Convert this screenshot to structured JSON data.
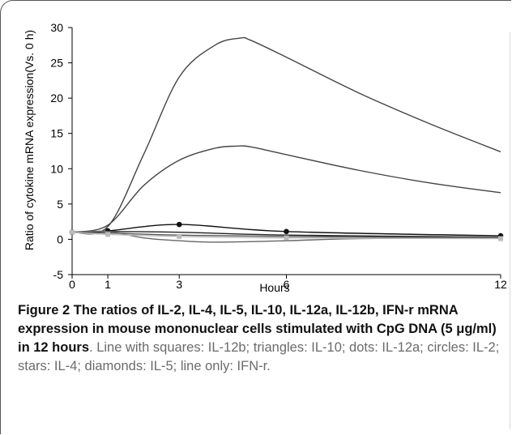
{
  "chart_data": {
    "type": "line",
    "xlabel": "Hours",
    "ylabel": "Ratio of cytokine mRNA expression(Vs. 0 h)",
    "xlim": [
      0,
      12
    ],
    "ylim": [
      -5,
      30
    ],
    "xticks": [
      0,
      1,
      3,
      6,
      12
    ],
    "yticks": [
      -5,
      0,
      5,
      10,
      15,
      20,
      25,
      30
    ],
    "grid": false,
    "series": [
      {
        "marker": "line",
        "color": "#444444",
        "x": [
          0,
          1,
          2,
          3,
          4,
          4.7,
          5,
          6,
          8,
          10,
          12
        ],
        "y": [
          1,
          1.8,
          12,
          23,
          27.5,
          28.5,
          28.2,
          25.8,
          20.8,
          16.4,
          12.4
        ]
      },
      {
        "marker": "line",
        "color": "#444444",
        "x": [
          0,
          1,
          2,
          3,
          4,
          4.6,
          5,
          6,
          8,
          10,
          12
        ],
        "y": [
          1,
          2.0,
          7.6,
          11.2,
          12.9,
          13.2,
          13.1,
          12.0,
          9.8,
          8.0,
          6.6
        ]
      },
      {
        "marker": "dot",
        "color": "#111111",
        "x": [
          0,
          1,
          3,
          6,
          12
        ],
        "y": [
          1,
          1.2,
          2.1,
          1.1,
          0.5
        ]
      },
      {
        "marker": "line",
        "color": "#222222",
        "x": [
          0,
          1,
          3,
          6,
          12
        ],
        "y": [
          1,
          1.1,
          1.0,
          0.6,
          0.3
        ]
      },
      {
        "marker": "line",
        "color": "#555555",
        "x": [
          0,
          1,
          3,
          6,
          12
        ],
        "y": [
          1,
          0.9,
          0.6,
          0.4,
          0.2
        ]
      },
      {
        "marker": "line",
        "color": "#666666",
        "x": [
          0,
          1,
          2,
          3,
          4,
          6,
          8,
          12
        ],
        "y": [
          1,
          1.1,
          0.2,
          -0.2,
          -0.4,
          -0.2,
          0.1,
          0.3
        ]
      },
      {
        "marker": "square",
        "color": "#bbbbbb",
        "x": [
          0,
          1,
          3,
          6,
          12
        ],
        "y": [
          1,
          0.7,
          0.4,
          0.2,
          0.1
        ]
      }
    ]
  },
  "caption": {
    "bold": "Figure 2 The ratios of IL-2, IL-4, IL-5, IL-10, IL-12a, IL-12b, IFN-r mRNA expression in mouse mononuclear cells stimulated with CpG DNA (5 μg/ml) in 12 hours",
    "rest": ". Line with squares: IL-12b; triangles: IL-10; dots: IL-12a; circles: IL-2; stars: IL-4; diamonds: IL-5; line only: IFN-r."
  }
}
